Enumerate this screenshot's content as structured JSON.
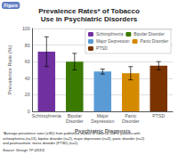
{
  "chart_data": {
    "type": "bar",
    "title": "Prevalence Rates* of Tobacco\nUse in Psychiatric Disorders",
    "xlabel": "Psychiatric Diagnosis",
    "ylabel": "Prevalence Rate (%)",
    "categories": [
      "Schizophrenia",
      "Bipolar\nDisorder",
      "Major\nDepression",
      "Panic\nDisorder",
      "PTSD"
    ],
    "series": [
      {
        "name": "Schizophrenia",
        "color": "#7030a0",
        "values": [
          72,
          null,
          null,
          null,
          null
        ],
        "errors": [
          18,
          null,
          null,
          null,
          null
        ]
      },
      {
        "name": "Bipolar Disorder",
        "color": "#3b7a00",
        "values": [
          null,
          60,
          null,
          null,
          null
        ],
        "errors": [
          null,
          10,
          null,
          null,
          null
        ]
      },
      {
        "name": "Major Depression",
        "color": "#5b9bd5",
        "values": [
          null,
          null,
          48,
          null,
          null
        ],
        "errors": [
          null,
          null,
          3,
          null,
          null
        ]
      },
      {
        "name": "Panic Disorder",
        "color": "#d48a00",
        "values": [
          null,
          null,
          null,
          46,
          null
        ],
        "errors": [
          null,
          null,
          null,
          8,
          null
        ]
      },
      {
        "name": "PTSD",
        "color": "#7b3300",
        "values": [
          null,
          null,
          null,
          null,
          55
        ],
        "errors": [
          null,
          null,
          null,
          null,
          5
        ]
      }
    ],
    "ylim": [
      0,
      100
    ],
    "yticks": [
      0,
      20,
      40,
      60,
      80,
      100
    ],
    "grid": true,
    "legend": "upper right",
    "annotations": [
      "Figure",
      "*Average prevalence rates (±SD) from published studies of tobacco use in patients with\nschizophrenia (n=13), bipolar disorder (n=2), major depression (n=3), panic disorder (n=2)\nand posttraumatic stress disorder (PTSD) (n=2).",
      "Source: George TP (2010)"
    ]
  }
}
